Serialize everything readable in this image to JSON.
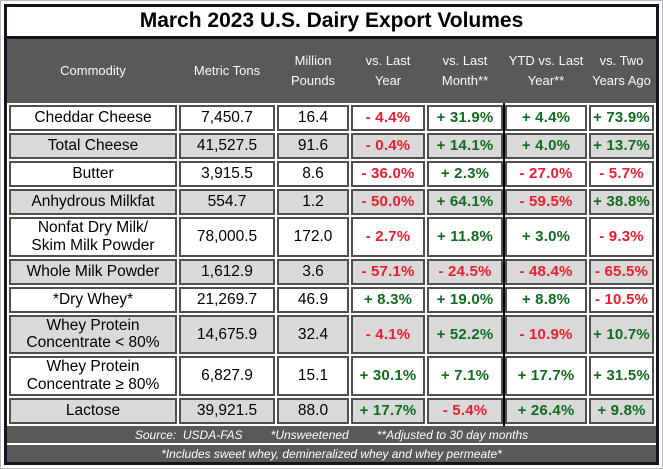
{
  "title": "March 2023 U.S. Dairy Export Volumes",
  "colors": {
    "header_bg": "#595959",
    "row_alt_bg": "#d9d9d9",
    "cell_border": "#4f4f4f",
    "frame_border": "#12151d",
    "negative_text": "#ed1c2e",
    "positive_text": "#0f6d1f",
    "footnote_bg": "#595959"
  },
  "chart_data": {
    "type": "table",
    "title": "March 2023 U.S. Dairy Export Volumes",
    "columns": [
      "Commodity",
      "Metric Tons",
      "Million Pounds",
      "vs. Last Year",
      "vs. Last Month**",
      "YTD vs. Last Year**",
      "vs. Two Years Ago"
    ],
    "rows": [
      [
        "Cheddar Cheese",
        "7,450.7",
        "16.4",
        "- 4.4%",
        "+ 31.9%",
        "+ 4.4%",
        "+ 73.9%"
      ],
      [
        "Total Cheese",
        "41,527.5",
        "91.6",
        "- 0.4%",
        "+ 14.1%",
        "+ 4.0%",
        "+ 13.7%"
      ],
      [
        "Butter",
        "3,915.5",
        "8.6",
        "- 36.0%",
        "+ 2.3%",
        "- 27.0%",
        "- 5.7%"
      ],
      [
        "Anhydrous Milkfat",
        "554.7",
        "1.2",
        "- 50.0%",
        "+ 64.1%",
        "- 59.5%",
        "+ 38.8%"
      ],
      [
        "Nonfat Dry Milk/\nSkim Milk Powder",
        "78,000.5",
        "172.0",
        "- 2.7%",
        "+ 11.8%",
        "+ 3.0%",
        "- 9.3%"
      ],
      [
        "Whole Milk Powder",
        "1,612.9",
        "3.6",
        "- 57.1%",
        "- 24.5%",
        "- 48.4%",
        "- 65.5%"
      ],
      [
        "*Dry Whey*",
        "21,269.7",
        "46.9",
        "+ 8.3%",
        "+ 19.0%",
        "+ 8.8%",
        "- 10.5%"
      ],
      [
        "Whey Protein\nConcentrate < 80%",
        "14,675.9",
        "32.4",
        "- 4.1%",
        "+ 52.2%",
        "- 10.9%",
        "+ 10.7%"
      ],
      [
        "Whey Protein\nConcentrate ≥ 80%",
        "6,827.9",
        "15.1",
        "+ 30.1%",
        "+ 7.1%",
        "+ 17.7%",
        "+ 31.5%"
      ],
      [
        "Lactose",
        "39,921.5",
        "88.0",
        "+ 17.7%",
        "- 5.4%",
        "+ 26.4%",
        "+ 9.8%"
      ]
    ]
  },
  "footnotes": {
    "line1": [
      "Source:  USDA-FAS",
      "*Unsweetened",
      "**Adjusted to 30 day months"
    ],
    "line2": "*Includes sweet whey, demineralized whey and whey permeate*"
  }
}
